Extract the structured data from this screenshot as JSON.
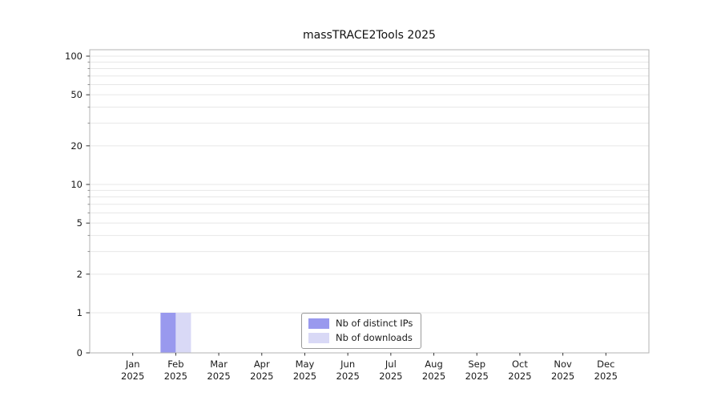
{
  "chart_data": {
    "type": "bar",
    "title": "massTRACE2Tools 2025",
    "categories": [
      "Jan",
      "Feb",
      "Mar",
      "Apr",
      "May",
      "Jun",
      "Jul",
      "Aug",
      "Sep",
      "Oct",
      "Nov",
      "Dec"
    ],
    "x_tick_second_line": "2025",
    "series": [
      {
        "name": "Nb of distinct IPs",
        "color": "#9999ee",
        "values": [
          0,
          1,
          0,
          0,
          0,
          0,
          0,
          0,
          0,
          0,
          0,
          0
        ]
      },
      {
        "name": "Nb of downloads",
        "color": "#d9d9f6",
        "values": [
          0,
          1,
          0,
          0,
          0,
          0,
          0,
          0,
          0,
          0,
          0,
          0
        ]
      }
    ],
    "yscale": "log above 1, linear between 0 and 1 (symlog)",
    "ylim": [
      0,
      112
    ],
    "y_tick_values": [
      0,
      1,
      2,
      5,
      10,
      20,
      50,
      100
    ],
    "y_tick_labels": [
      "0",
      "1",
      "2",
      "5",
      "10",
      "20",
      "50",
      "100"
    ],
    "y_minor_gridlines": [
      1,
      2,
      3,
      4,
      5,
      6,
      7,
      8,
      9,
      10,
      20,
      30,
      40,
      50,
      60,
      70,
      80,
      90,
      100
    ],
    "grid": "horizontal light gray lines at log ticks",
    "legend_position": "bottom center, inside plot area"
  },
  "colors": {
    "grid": "#e7e7e7",
    "spine": "#b3b3b3",
    "tick": "#333333",
    "text": "#1a1a1a",
    "background": "#ffffff"
  }
}
